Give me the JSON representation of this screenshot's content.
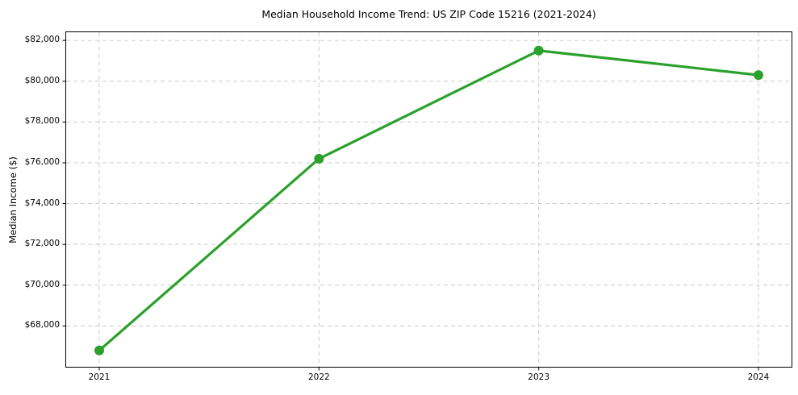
{
  "page": {
    "background": "#ffffff"
  },
  "chart_data": {
    "type": "line",
    "title": "Median Household Income Trend: US ZIP Code 15216 (2021-2024)",
    "xlabel": "",
    "ylabel": "Median Income ($)",
    "categories": [
      "2021",
      "2022",
      "2023",
      "2024"
    ],
    "values": [
      66800,
      76200,
      81500,
      80300
    ],
    "value_labels": [
      "$66,800",
      "$76,200",
      "$81,500",
      "$80,300"
    ],
    "ylim": [
      66000,
      82400
    ],
    "yticks": [
      {
        "value": 82000,
        "label": "$82,000"
      },
      {
        "value": 80000,
        "label": "$80,000"
      },
      {
        "value": 78000,
        "label": "$78,000"
      },
      {
        "value": 76000,
        "label": "$76,000"
      },
      {
        "value": 74000,
        "label": "$74,000"
      },
      {
        "value": 72000,
        "label": "$72,000"
      },
      {
        "value": 70000,
        "label": "$70,000"
      },
      {
        "value": 68000,
        "label": "$68,000"
      }
    ],
    "grid": {
      "show": true,
      "style": "dashed",
      "color": "#cccccc"
    },
    "legend": "none",
    "line_color": "#2ca02c",
    "marker": "circle",
    "frame_color": "#000000"
  }
}
